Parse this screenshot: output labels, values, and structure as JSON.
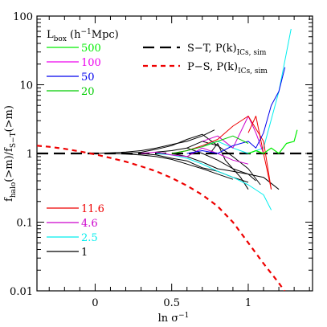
{
  "chart_data": {
    "type": "line",
    "title": "",
    "xlabel": "ln σ",
    "xlabel_sup": "−1",
    "ylabel": "f",
    "ylabel_sub": "halo",
    "ylabel_mid": "(>m)/f",
    "ylabel_sub2": "S−T",
    "ylabel_end": "(>m)",
    "xlim": [
      -0.38,
      1.42
    ],
    "ylim": [
      0.01,
      100
    ],
    "yscale": "log",
    "x_ticks": [
      {
        "v": 0,
        "label": "0"
      },
      {
        "v": 0.5,
        "label": "0.5"
      },
      {
        "v": 1,
        "label": "1"
      }
    ],
    "y_ticks": [
      {
        "v": 0.01,
        "label": "0.01"
      },
      {
        "v": 0.1,
        "label": "0.1"
      },
      {
        "v": 1,
        "label": "1"
      },
      {
        "v": 10,
        "label": "10"
      },
      {
        "v": 100,
        "label": "100"
      }
    ],
    "legend_title": {
      "main": "L",
      "sub": "box",
      "units_pre": " (h",
      "units_sup": "−1",
      "units_post": "Mpc)"
    },
    "box_legend": [
      {
        "label": "500",
        "color": "#00ee00"
      },
      {
        "label": "100",
        "color": "#ee00ee"
      },
      {
        "label": "50",
        "color": "#0000ee"
      },
      {
        "label": "20",
        "color": "#00cc00"
      },
      {
        "label": "11.6",
        "color": "#ee0000"
      },
      {
        "label": "4.6",
        "color": "#cc00cc"
      },
      {
        "label": "2.5",
        "color": "#00eeee"
      },
      {
        "label": "1",
        "color": "#000000"
      }
    ],
    "fit_legend": [
      {
        "label": "S−T, P(k)",
        "sub": "ICs, sim",
        "color": "#000000",
        "dash": "14,7"
      },
      {
        "label": "P−S, P(k)",
        "sub": "ICs, sim",
        "color": "#ee0000",
        "dash": "6,5"
      }
    ],
    "series": [
      {
        "name": "S−T, P(k)ICs, sim",
        "color": "#000000",
        "dash": "14,7",
        "width": 2.2,
        "x": [
          -0.38,
          1.42
        ],
        "y": [
          1,
          1
        ]
      },
      {
        "name": "P−S, P(k)ICs, sim",
        "color": "#ee0000",
        "dash": "6,5",
        "width": 2.2,
        "x": [
          -0.38,
          -0.3,
          -0.2,
          -0.1,
          0,
          0.1,
          0.2,
          0.3,
          0.4,
          0.5,
          0.6,
          0.7,
          0.8,
          0.9,
          1.0,
          1.1,
          1.2,
          1.25
        ],
        "y": [
          1.3,
          1.25,
          1.17,
          1.07,
          0.97,
          0.86,
          0.76,
          0.65,
          0.55,
          0.44,
          0.34,
          0.25,
          0.17,
          0.1,
          0.05,
          0.025,
          0.013,
          0.009
        ]
      },
      {
        "color": "#000000",
        "width": 1,
        "x": [
          0.0,
          0.1,
          0.2,
          0.3,
          0.4,
          0.5,
          0.6,
          0.7,
          0.78
        ],
        "y": [
          1.0,
          1.02,
          1.05,
          1.1,
          1.2,
          1.35,
          1.5,
          1.8,
          2.2
        ]
      },
      {
        "color": "#000000",
        "width": 1,
        "x": [
          0.1,
          0.2,
          0.3,
          0.4,
          0.5,
          0.6,
          0.7,
          0.8,
          0.9
        ],
        "y": [
          1.0,
          0.98,
          0.95,
          0.9,
          0.82,
          0.7,
          0.6,
          0.5,
          0.42
        ]
      },
      {
        "color": "#000000",
        "width": 1,
        "x": [
          0.2,
          0.3,
          0.4,
          0.5,
          0.6,
          0.7,
          0.8
        ],
        "y": [
          1.0,
          1.04,
          1.15,
          1.3,
          1.6,
          1.9,
          1.3
        ]
      },
      {
        "color": "#000000",
        "width": 1,
        "x": [
          0.3,
          0.4,
          0.5,
          0.6,
          0.7,
          0.8,
          0.9,
          1.0
        ],
        "y": [
          1.0,
          0.95,
          0.85,
          0.78,
          0.62,
          0.55,
          0.45,
          0.38
        ]
      },
      {
        "color": "#000000",
        "width": 1,
        "x": [
          0.4,
          0.5,
          0.6,
          0.7,
          0.8,
          0.9,
          1.0,
          1.05
        ],
        "y": [
          1.05,
          1.1,
          1.2,
          1.0,
          0.8,
          0.6,
          0.5,
          0.4
        ]
      },
      {
        "color": "#000000",
        "width": 1,
        "x": [
          0.5,
          0.6,
          0.7,
          0.8,
          0.9,
          1.0,
          1.1,
          1.2
        ],
        "y": [
          1.0,
          0.9,
          0.75,
          0.6,
          0.55,
          0.5,
          0.45,
          0.3
        ]
      },
      {
        "color": "#000000",
        "width": 1,
        "x": [
          0.6,
          0.7,
          0.8,
          0.9,
          1.0,
          1.08
        ],
        "y": [
          1.2,
          1.5,
          1.3,
          0.9,
          0.6,
          0.35
        ]
      },
      {
        "color": "#000000",
        "width": 1,
        "x": [
          0.75,
          0.8,
          0.85,
          0.9,
          0.95,
          1.0
        ],
        "y": [
          1.0,
          1.4,
          0.8,
          0.6,
          0.45,
          0.3
        ]
      },
      {
        "color": "#00eeee",
        "width": 1,
        "x": [
          0.4,
          0.5,
          0.6,
          0.7,
          0.8,
          0.9,
          1.0,
          1.1,
          1.15
        ],
        "y": [
          1.0,
          0.95,
          0.85,
          0.7,
          0.55,
          0.45,
          0.35,
          0.25,
          0.15
        ]
      },
      {
        "color": "#00eeee",
        "width": 1,
        "x": [
          0.6,
          0.7,
          0.8,
          0.9,
          1.0,
          1.1,
          1.2,
          1.28
        ],
        "y": [
          1.1,
          1.3,
          1.5,
          1.2,
          1.0,
          1.2,
          8,
          65
        ]
      },
      {
        "color": "#cc00cc",
        "width": 1,
        "x": [
          0.3,
          0.4,
          0.5,
          0.6,
          0.7,
          0.8,
          0.9,
          1.0
        ],
        "y": [
          1.0,
          1.05,
          0.95,
          0.9,
          1.2,
          1.0,
          0.8,
          0.7
        ]
      },
      {
        "color": "#cc00cc",
        "width": 1,
        "x": [
          0.7,
          0.8,
          0.9,
          1.0,
          1.05,
          1.1
        ],
        "y": [
          1.5,
          1.8,
          1.2,
          3.5,
          2.0,
          1.0
        ]
      },
      {
        "color": "#ee0000",
        "width": 1,
        "x": [
          0.5,
          0.6,
          0.7,
          0.8,
          0.9,
          1.0,
          1.1,
          1.15
        ],
        "y": [
          1.0,
          1.1,
          1.3,
          1.6,
          2.5,
          3.5,
          1.5,
          0.3
        ]
      },
      {
        "color": "#ee0000",
        "width": 1,
        "x": [
          1.0,
          1.05,
          1.1,
          1.15
        ],
        "y": [
          2.0,
          3.5,
          1.0,
          0.3
        ]
      },
      {
        "color": "#0000ee",
        "width": 1,
        "x": [
          0.6,
          0.7,
          0.8,
          0.9,
          1.0,
          1.05,
          1.1,
          1.15,
          1.2,
          1.24
        ],
        "y": [
          1.0,
          1.1,
          1.0,
          1.3,
          1.5,
          1.2,
          2.0,
          5,
          8,
          18
        ]
      },
      {
        "color": "#00cc00",
        "width": 1,
        "x": [
          0.5,
          0.6,
          0.7,
          0.8,
          0.9,
          1.0
        ],
        "y": [
          1.0,
          1.1,
          1.25,
          1.5,
          1.8,
          1.4
        ]
      },
      {
        "color": "#00ee00",
        "width": 1.2,
        "x": [
          1.0,
          1.05,
          1.1,
          1.15,
          1.2,
          1.25,
          1.3,
          1.32
        ],
        "y": [
          1.0,
          1.1,
          1.0,
          1.2,
          1.0,
          1.4,
          1.5,
          2.2
        ]
      }
    ]
  }
}
